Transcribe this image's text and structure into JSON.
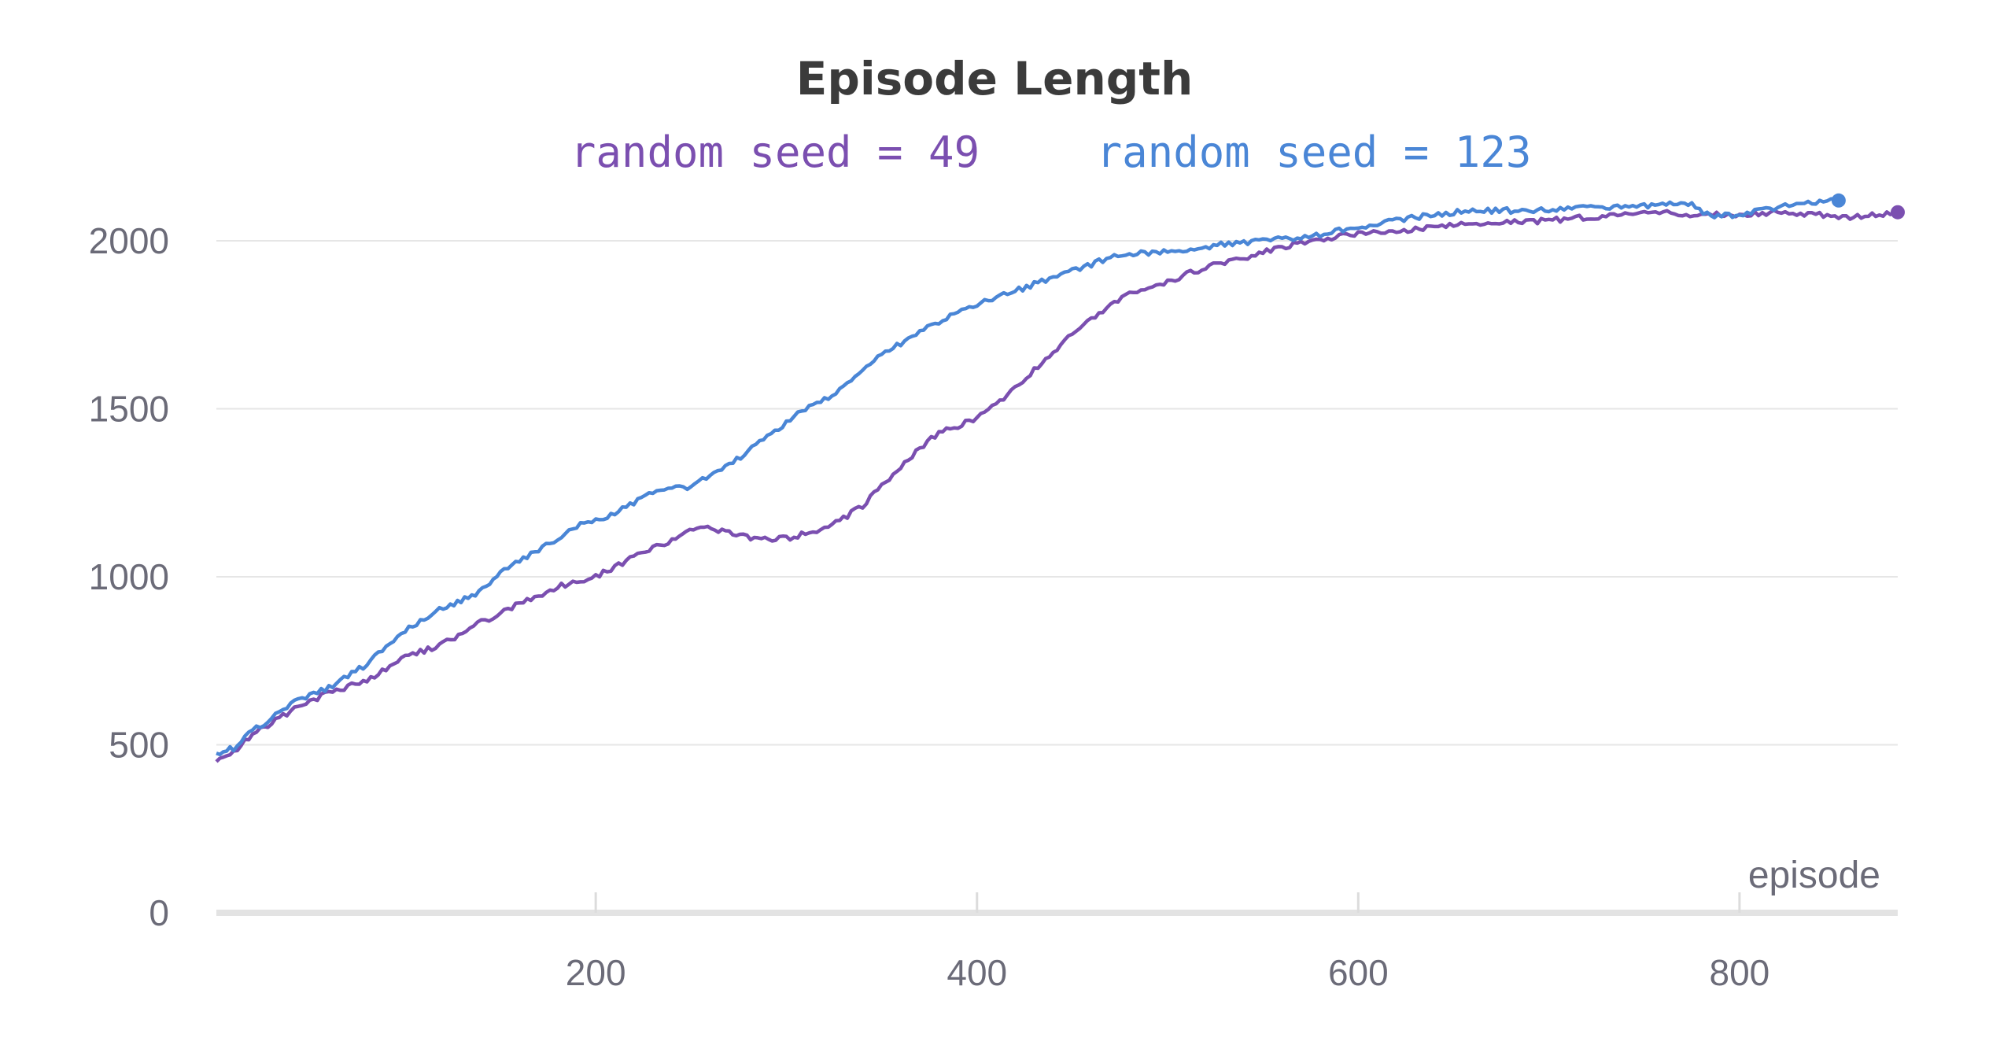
{
  "chart_data": {
    "type": "line",
    "title": "Episode Length",
    "xlabel": "episode",
    "ylabel": "",
    "xlim": [
      1,
      883
    ],
    "ylim": [
      0,
      2000
    ],
    "x_ticks": [
      200,
      400,
      600,
      800
    ],
    "y_ticks": [
      0,
      500,
      1000,
      1500,
      2000
    ],
    "grid": "horizontal",
    "legend_position": "top-center",
    "series": [
      {
        "name": "random seed = 49",
        "color": "#7b4fb0",
        "x": [
          1,
          10,
          20,
          40,
          60,
          80,
          100,
          120,
          140,
          160,
          180,
          200,
          220,
          240,
          255,
          270,
          285,
          300,
          320,
          340,
          360,
          380,
          400,
          420,
          440,
          460,
          480,
          500,
          520,
          540,
          560,
          580,
          600,
          620,
          640,
          660,
          680,
          700,
          720,
          740,
          760,
          780,
          800,
          820,
          840,
          860,
          883
        ],
        "y": [
          450,
          480,
          530,
          600,
          655,
          690,
          760,
          800,
          865,
          920,
          970,
          1000,
          1060,
          1110,
          1150,
          1130,
          1110,
          1115,
          1140,
          1210,
          1330,
          1430,
          1470,
          1560,
          1670,
          1770,
          1840,
          1880,
          1920,
          1950,
          1980,
          2005,
          2020,
          2030,
          2040,
          2050,
          2055,
          2060,
          2070,
          2080,
          2085,
          2075,
          2080,
          2085,
          2080,
          2070,
          2085
        ]
      },
      {
        "name": "random seed = 123",
        "color": "#4a86d6",
        "x": [
          1,
          10,
          20,
          40,
          60,
          80,
          100,
          120,
          135,
          150,
          170,
          190,
          210,
          230,
          250,
          270,
          290,
          310,
          330,
          350,
          370,
          390,
          410,
          430,
          450,
          470,
          490,
          510,
          530,
          550,
          570,
          590,
          610,
          630,
          650,
          670,
          690,
          710,
          730,
          750,
          775,
          785,
          800,
          820,
          852
        ],
        "y": [
          475,
          490,
          540,
          620,
          670,
          740,
          840,
          910,
          940,
          1010,
          1080,
          1150,
          1190,
          1250,
          1270,
          1330,
          1420,
          1500,
          1560,
          1660,
          1730,
          1790,
          1830,
          1870,
          1910,
          1950,
          1965,
          1975,
          1990,
          2000,
          2010,
          2030,
          2050,
          2070,
          2085,
          2090,
          2090,
          2095,
          2100,
          2105,
          2110,
          2070,
          2080,
          2100,
          2120
        ]
      }
    ]
  }
}
